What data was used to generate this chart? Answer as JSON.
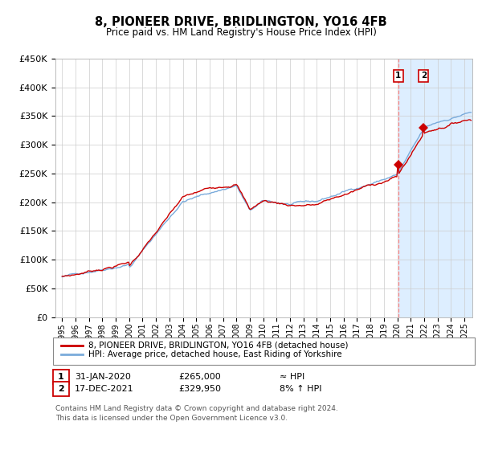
{
  "title": "8, PIONEER DRIVE, BRIDLINGTON, YO16 4FB",
  "subtitle": "Price paid vs. HM Land Registry's House Price Index (HPI)",
  "legend_line1": "8, PIONEER DRIVE, BRIDLINGTON, YO16 4FB (detached house)",
  "legend_line2": "HPI: Average price, detached house, East Riding of Yorkshire",
  "transaction1_label": "1",
  "transaction1_date": "31-JAN-2020",
  "transaction1_price": "£265,000",
  "transaction1_hpi": "≈ HPI",
  "transaction2_label": "2",
  "transaction2_date": "17-DEC-2021",
  "transaction2_price": "£329,950",
  "transaction2_hpi": "8% ↑ HPI",
  "footnote": "Contains HM Land Registry data © Crown copyright and database right 2024.\nThis data is licensed under the Open Government Licence v3.0.",
  "hpi_line_color": "#7aabdb",
  "price_line_color": "#cc0000",
  "marker_color": "#cc0000",
  "shade_color": "#ddeeff",
  "vline_color": "#ff8888",
  "box_color": "#cc0000",
  "ylim": [
    0,
    450000
  ],
  "yticks": [
    0,
    50000,
    100000,
    150000,
    200000,
    250000,
    300000,
    350000,
    400000,
    450000
  ],
  "transaction1_x": 2020.08,
  "transaction1_y": 265000,
  "transaction2_x": 2021.96,
  "transaction2_y": 329950,
  "shade_start": 2020.08,
  "shade_end": 2025.6,
  "xlim_left": 1994.5,
  "xlim_right": 2025.6
}
